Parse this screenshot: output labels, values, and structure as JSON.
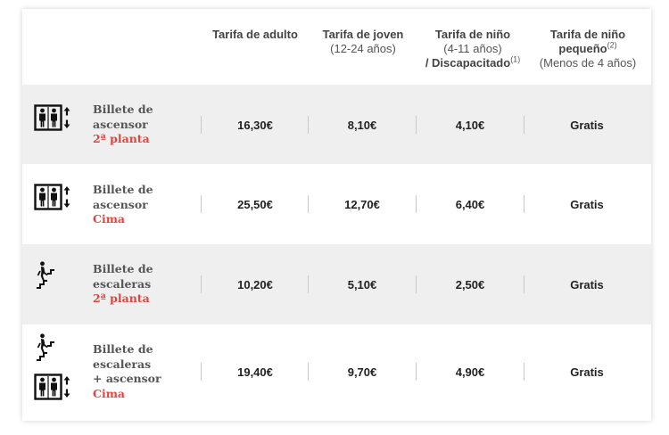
{
  "headers": {
    "adult": {
      "title": "Tarifa de adulto"
    },
    "youth": {
      "title": "Tarifa de joven",
      "sub": "(12-24 años)"
    },
    "child": {
      "title": "Tarifa de niño",
      "sub": "(4-11 años)",
      "extra": "/ Discapacitado",
      "note": "(1)"
    },
    "infant": {
      "title": "Tarifa de niño",
      "title2": "pequeño",
      "note": "(2)",
      "sub": "(Menos de 4 años)"
    }
  },
  "rows": [
    {
      "icon": "elevator-icon",
      "line1": "Billete de",
      "line2": "ascensor",
      "line3": "",
      "sub": "2ª planta",
      "adult": "16,30€",
      "youth": "8,10€",
      "child": "4,10€",
      "infant": "Gratis"
    },
    {
      "icon": "elevator-icon",
      "line1": "Billete de",
      "line2": "ascensor",
      "line3": "",
      "sub": "Cima",
      "adult": "25,50€",
      "youth": "12,70€",
      "child": "6,40€",
      "infant": "Gratis"
    },
    {
      "icon": "stairs-icon",
      "line1": "Billete de",
      "line2": "escaleras",
      "line3": "",
      "sub": "2ª planta",
      "adult": "10,20€",
      "youth": "5,10€",
      "child": "2,50€",
      "infant": "Gratis"
    },
    {
      "icon": "stairs-elevator-icon",
      "line1": "Billete de",
      "line2": "escaleras",
      "line3": "+ ascensor",
      "sub": "Cima",
      "adult": "19,40€",
      "youth": "9,70€",
      "child": "4,90€",
      "infant": "Gratis"
    }
  ],
  "colors": {
    "accent": "#e2453f",
    "row_alt": "#efefef",
    "text": "#222222"
  }
}
